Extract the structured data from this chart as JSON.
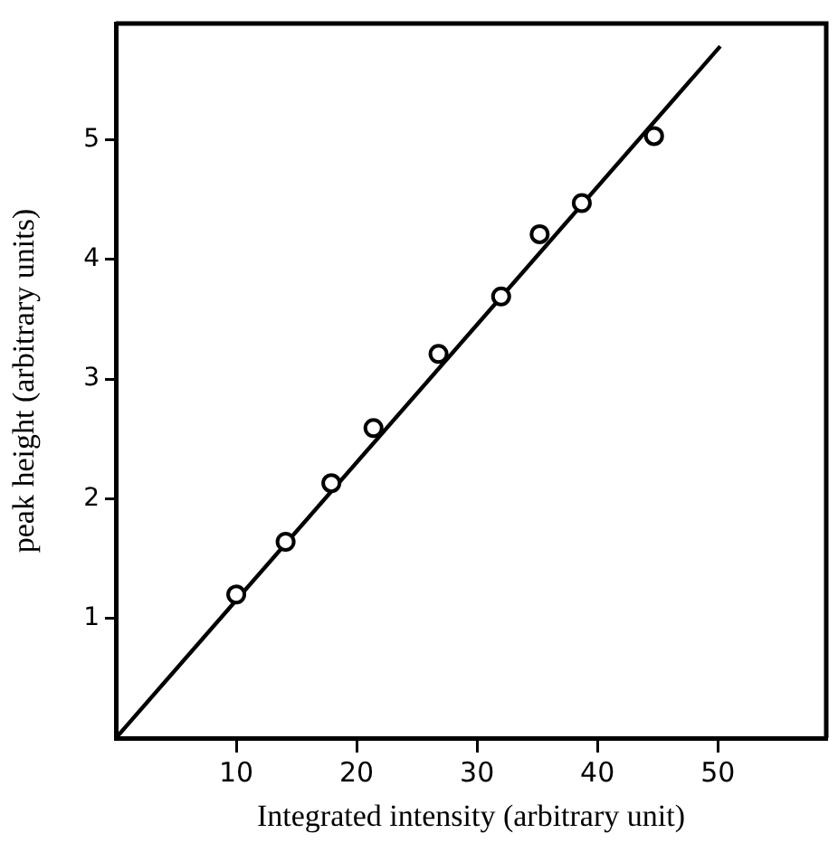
{
  "chart_data": {
    "type": "scatter",
    "xlabel": "Integrated intensity (arbitrary unit)",
    "ylabel": "peak height (arbitrary units)",
    "xlim": [
      0,
      59
    ],
    "ylim": [
      0,
      5.97
    ],
    "xticks": [
      10,
      20,
      30,
      40,
      50
    ],
    "yticks": [
      1,
      2,
      3,
      4,
      5
    ],
    "grid": false,
    "legend": false,
    "marker": "circle",
    "series": [
      {
        "color": "#000000",
        "x": [
          10.0,
          14.1,
          17.9,
          21.4,
          26.8,
          32.0,
          35.2,
          38.7,
          44.7
        ],
        "values": [
          1.2,
          1.64,
          2.13,
          2.59,
          3.21,
          3.69,
          4.21,
          4.47,
          5.03
        ]
      },
      {
        "type": "line",
        "color": "#000000",
        "marker": "none",
        "line_style": "solid",
        "x": [
          0,
          50.2
        ],
        "values": [
          0,
          5.78
        ]
      }
    ]
  }
}
